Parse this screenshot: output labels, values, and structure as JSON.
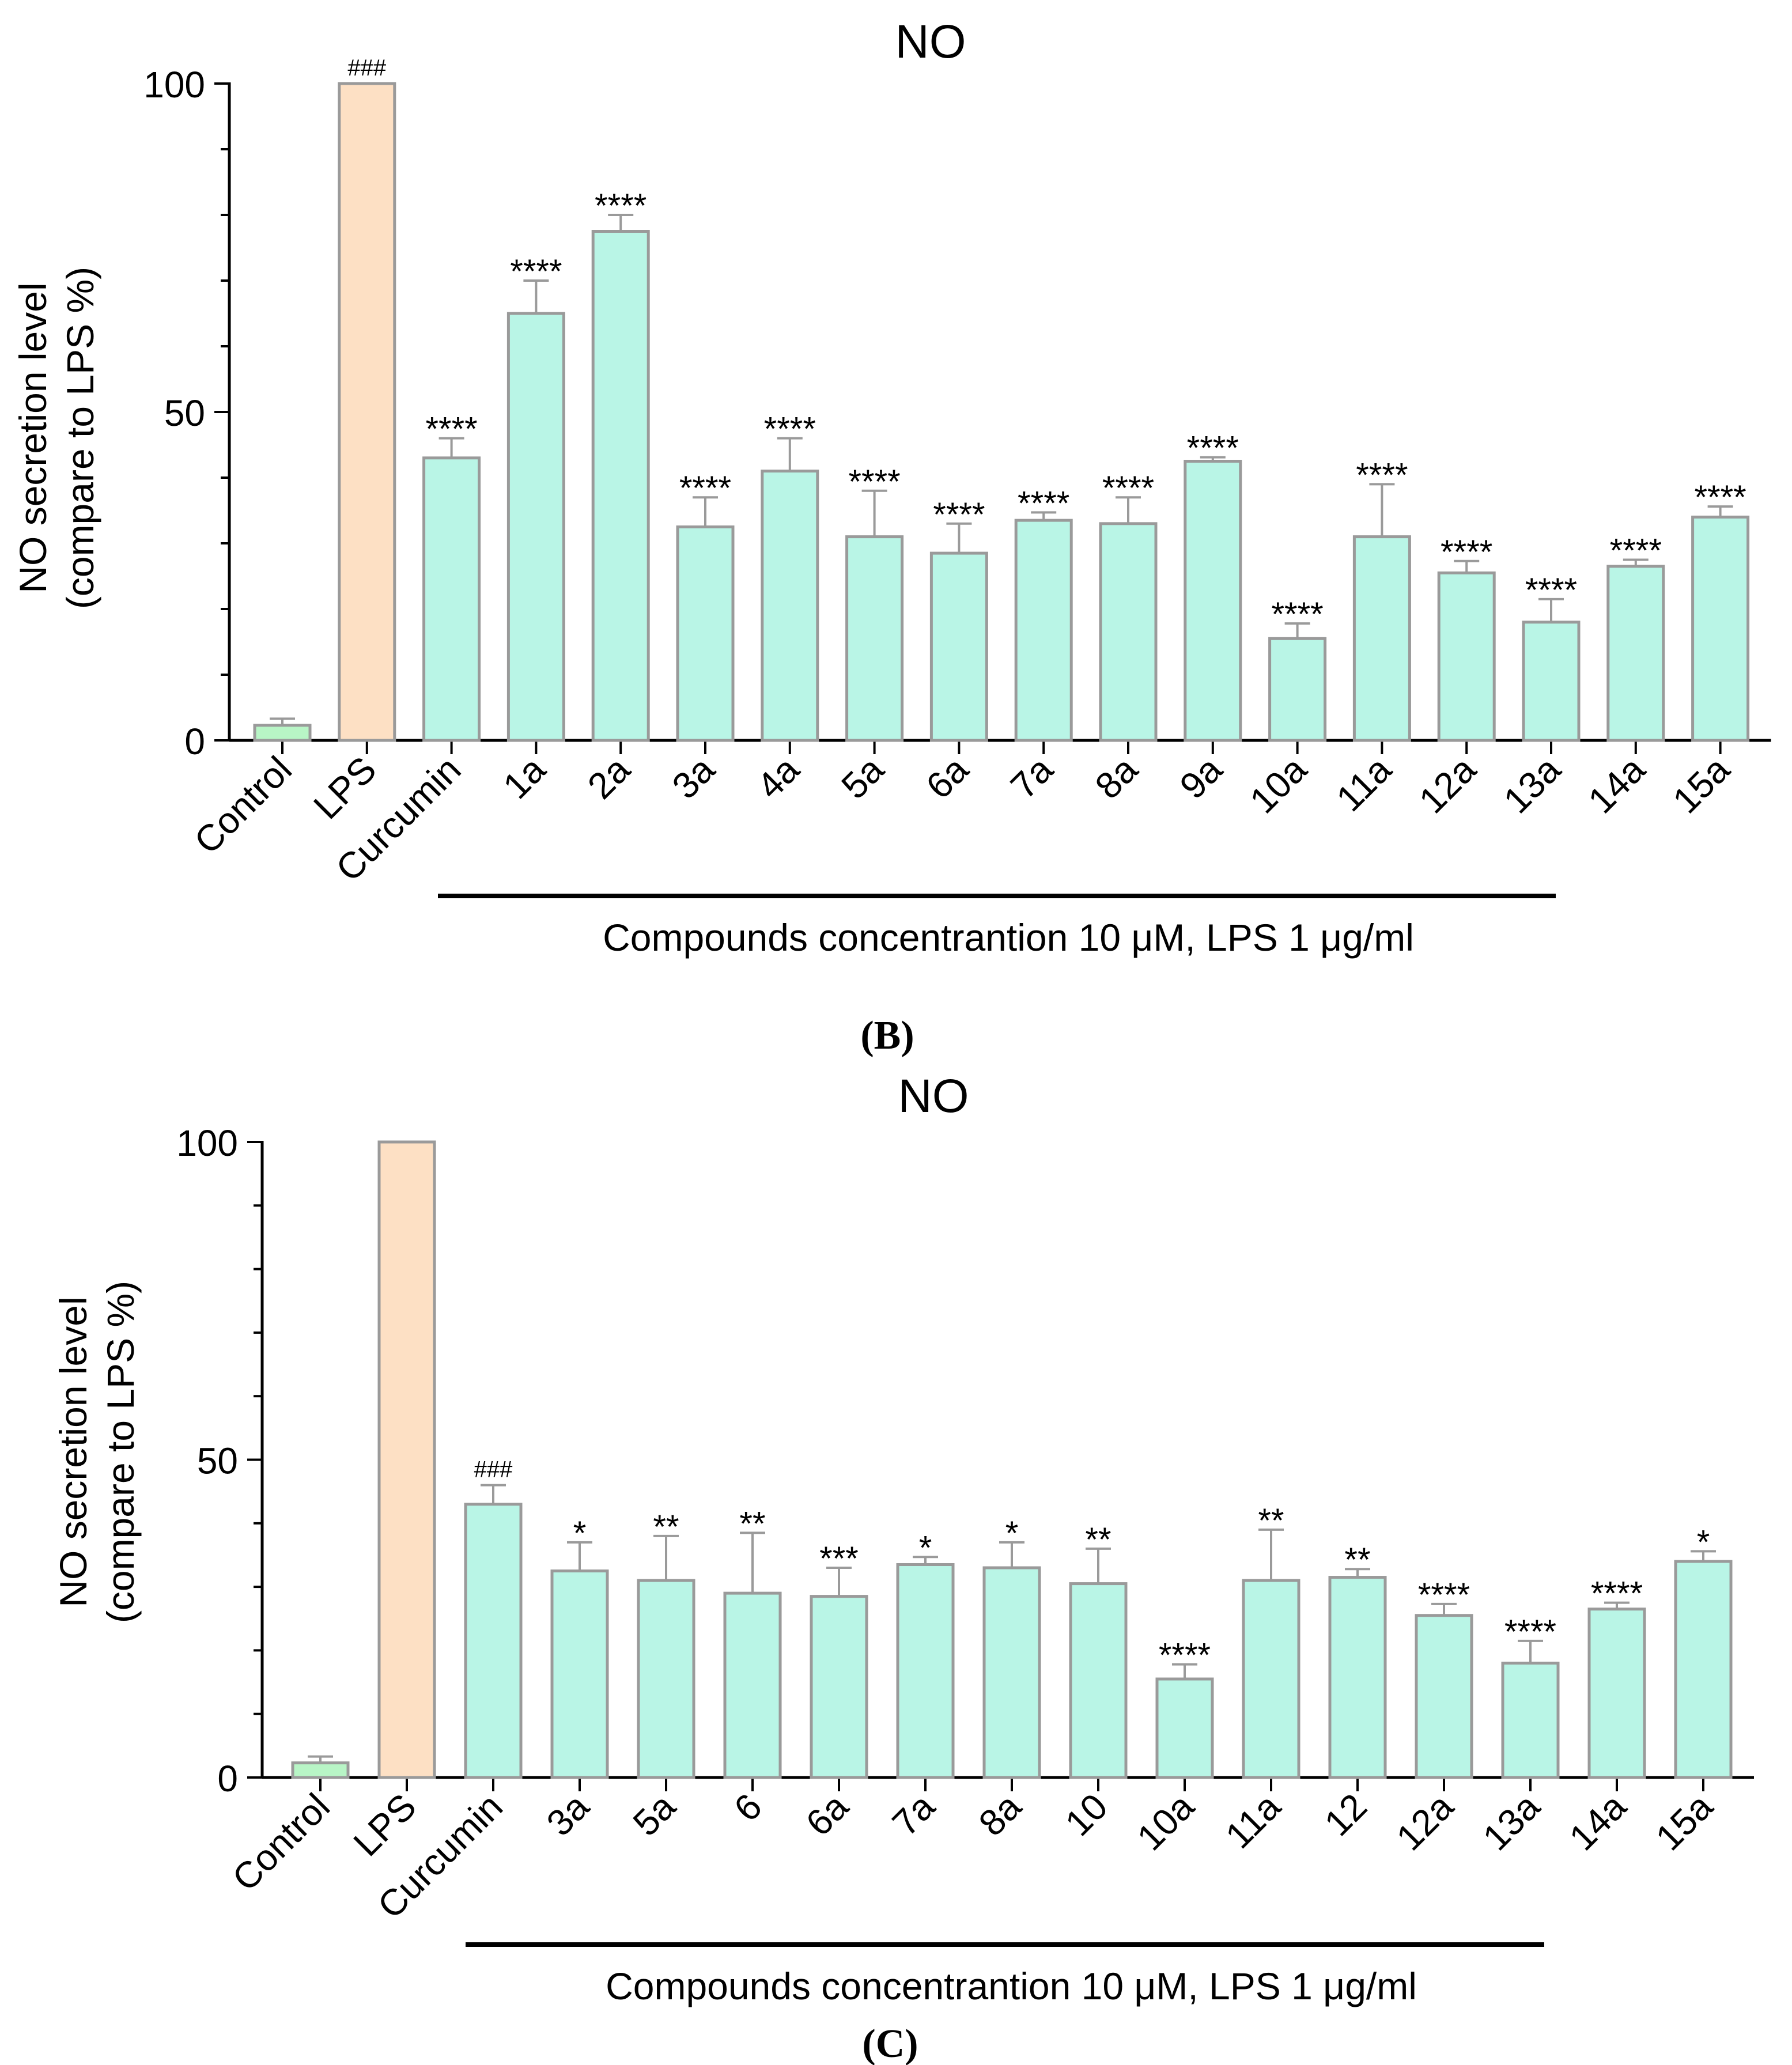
{
  "colors": {
    "control": "#b8f5c6",
    "lps": "#fde0c4",
    "compound": "#b9f5e6",
    "bar_stroke": "#9a9a9a",
    "axis": "#000000"
  },
  "chart_data": [
    {
      "type": "bar",
      "title": "NO",
      "ylabel_line1": "NO secretion level",
      "ylabel_line2": "(compare to LPS %)",
      "xlabel": "Compounds concentrantion 10 μM, LPS 1 μg/ml",
      "panel_label": "(B)",
      "ylim": [
        0,
        100
      ],
      "yticks": [
        "0",
        "50",
        "100"
      ],
      "categories": [
        "Control",
        "LPS",
        "Curcumin",
        "1a",
        "2a",
        "3a",
        "4a",
        "5a",
        "6a",
        "7a",
        "8a",
        "9a",
        "10a",
        "11a",
        "12a",
        "13a",
        "14a",
        "15a"
      ],
      "groups": [
        "control",
        "lps",
        "compound",
        "compound",
        "compound",
        "compound",
        "compound",
        "compound",
        "compound",
        "compound",
        "compound",
        "compound",
        "compound",
        "compound",
        "compound",
        "compound",
        "compound",
        "compound"
      ],
      "values": [
        2.3,
        100,
        43,
        65,
        77.5,
        32.5,
        41,
        31,
        28.5,
        33.5,
        33,
        42.5,
        15.5,
        31,
        25.5,
        18,
        26.5,
        34
      ],
      "errors": [
        1.0,
        0,
        3.0,
        5.0,
        2.5,
        4.5,
        5.0,
        7.0,
        4.5,
        1.2,
        4.0,
        0.6,
        2.3,
        8.0,
        1.8,
        3.5,
        1.0,
        1.6
      ],
      "significance": [
        "",
        "###",
        "****",
        "****",
        "****",
        "****",
        "****",
        "****",
        "****",
        "****",
        "****",
        "****",
        "****",
        "****",
        "****",
        "****",
        "****",
        "****"
      ]
    },
    {
      "type": "bar",
      "title": "NO",
      "ylabel_line1": "NO secretion level",
      "ylabel_line2": "(compare to LPS %)",
      "xlabel": "Compounds concentrantion 10 μM, LPS 1 μg/ml",
      "panel_label": "(C)",
      "ylim": [
        0,
        100
      ],
      "yticks": [
        "0",
        "50",
        "100"
      ],
      "categories": [
        "Control",
        "LPS",
        "Curcumin",
        "3a",
        "5a",
        "6",
        "6a",
        "7a",
        "8a",
        "10",
        "10a",
        "11a",
        "12",
        "12a",
        "13a",
        "14a",
        "15a"
      ],
      "groups": [
        "control",
        "lps",
        "compound",
        "compound",
        "compound",
        "compound",
        "compound",
        "compound",
        "compound",
        "compound",
        "compound",
        "compound",
        "compound",
        "compound",
        "compound",
        "compound",
        "compound"
      ],
      "values": [
        2.3,
        100,
        43,
        32.5,
        31,
        29,
        28.5,
        33.5,
        33,
        30.5,
        15.5,
        31,
        31.5,
        25.5,
        18,
        26.5,
        34
      ],
      "errors": [
        1.0,
        0,
        3.0,
        4.5,
        7.0,
        9.5,
        4.5,
        1.2,
        4.0,
        5.5,
        2.3,
        8.0,
        1.3,
        1.8,
        3.5,
        1.0,
        1.6
      ],
      "significance": [
        "",
        "",
        "###",
        "*",
        "**",
        "**",
        "***",
        "*",
        "*",
        "**",
        "****",
        "**",
        "**",
        "****",
        "****",
        "****",
        "*"
      ]
    }
  ]
}
